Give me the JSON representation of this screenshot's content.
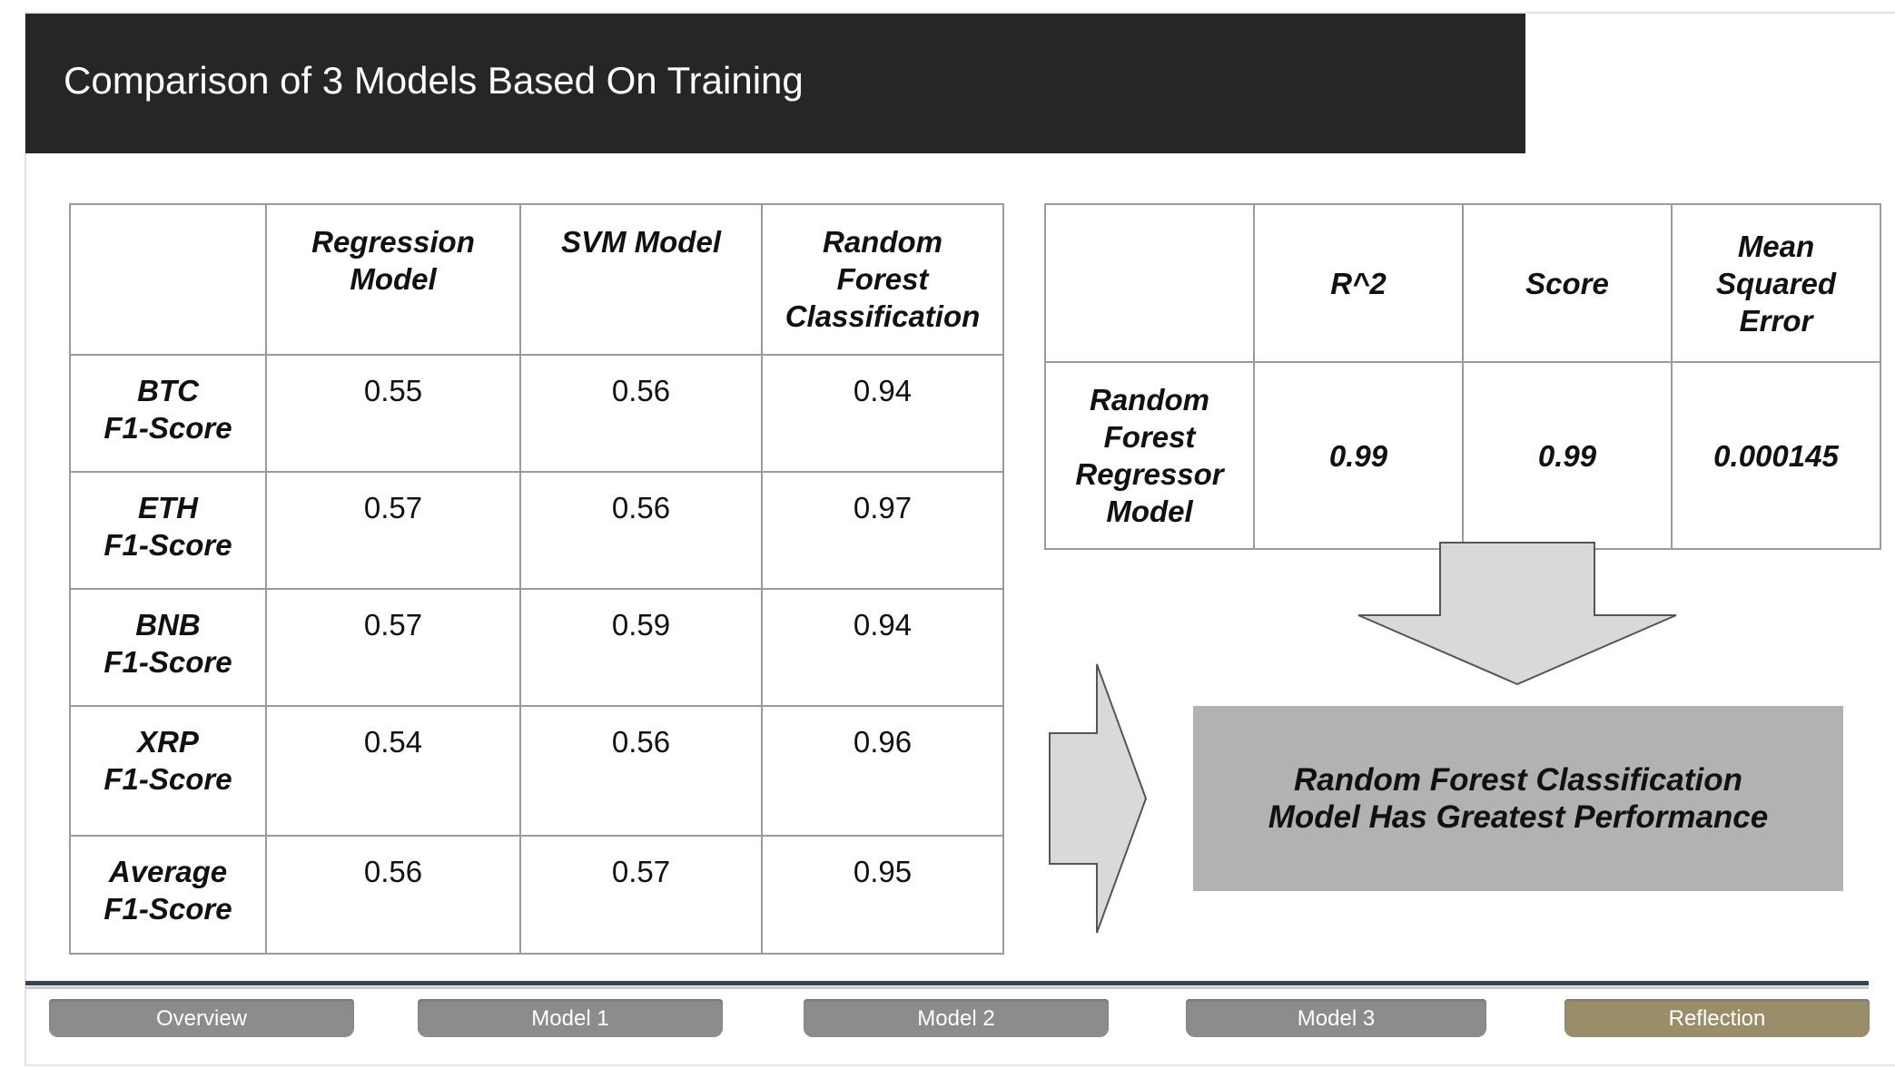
{
  "header": {
    "title": "Comparison of 3 Models Based On Training"
  },
  "classification_table": {
    "columns": [
      "",
      "Regression\nModel",
      "SVM Model",
      "Random\nForest\nClassification"
    ],
    "rows": [
      {
        "label": "BTC\nF1-Score",
        "values": [
          "0.55",
          "0.56",
          "0.94"
        ]
      },
      {
        "label": "ETH\nF1-Score",
        "values": [
          "0.57",
          "0.56",
          "0.97"
        ]
      },
      {
        "label": "BNB\nF1-Score",
        "values": [
          "0.57",
          "0.59",
          "0.94"
        ]
      },
      {
        "label": "XRP\nF1-Score",
        "values": [
          "0.54",
          "0.56",
          "0.96"
        ]
      },
      {
        "label": "Average\nF1-Score",
        "values": [
          "0.56",
          "0.57",
          "0.95"
        ]
      }
    ]
  },
  "regressor_table": {
    "columns": [
      "",
      "R^2",
      "Score",
      "Mean\nSquared\nError"
    ],
    "row": {
      "label": "Random\nForest\nRegressor\nModel",
      "values": [
        "0.99",
        "0.99",
        "0.000145"
      ]
    }
  },
  "conclusion": {
    "line1": "Random Forest Classification",
    "line2": "Model Has Greatest Performance"
  },
  "nav": {
    "items": [
      "Overview",
      "Model 1",
      "Model 2",
      "Model 3",
      "Reflection"
    ],
    "active": "Reflection"
  },
  "colors": {
    "title_bg": "#262626",
    "nav_button": "#8c8c8c",
    "nav_active": "#9a8e6a",
    "conclusion_bg": "#b2b2b2",
    "arrow_fill": "#d9d9d9"
  }
}
